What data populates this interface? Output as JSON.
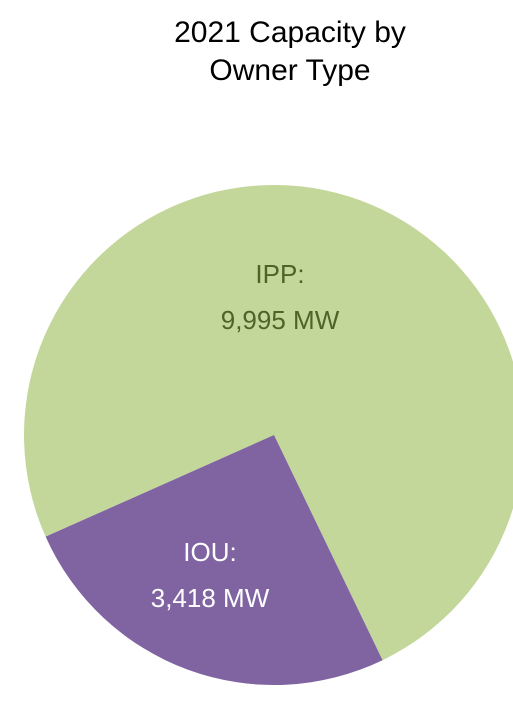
{
  "chart_data": {
    "type": "pie",
    "title": "2021 Capacity by Owner Type",
    "categories": [
      "IPP:",
      "IOU:"
    ],
    "values": [
      9995,
      3418
    ],
    "value_labels": [
      "9,995 MW",
      "3,418 MW"
    ],
    "colors": [
      "#c4d79b",
      "#8064a2"
    ],
    "label_colors": [
      "#4f6228",
      "#ffffff"
    ]
  }
}
